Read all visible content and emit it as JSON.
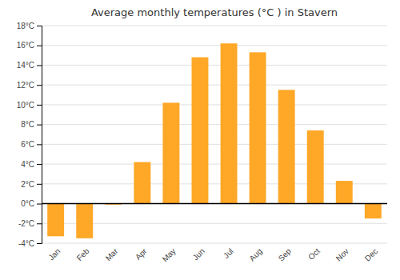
{
  "chart_data": {
    "type": "bar",
    "title": "Average monthly temperatures (°C ) in Stavern",
    "categories": [
      "Jan",
      "Feb",
      "Mar",
      "Apr",
      "May",
      "Jun",
      "Jul",
      "Aug",
      "Sep",
      "Oct",
      "Nov",
      "Dec"
    ],
    "values": [
      -3.3,
      -3.5,
      -0.1,
      4.2,
      10.2,
      14.8,
      16.2,
      15.3,
      11.5,
      7.4,
      2.3,
      -1.5
    ],
    "color": "#FFA726",
    "ylim": [
      -4,
      18
    ],
    "yticks": [
      {
        "value": -4,
        "label": "-4°C"
      },
      {
        "value": -2,
        "label": "-2°C"
      },
      {
        "value": 0,
        "label": "0°C"
      },
      {
        "value": 2,
        "label": "2°C"
      },
      {
        "value": 4,
        "label": "4°C"
      },
      {
        "value": 6,
        "label": "6°C"
      },
      {
        "value": 8,
        "label": "8°C"
      },
      {
        "value": 10,
        "label": "10°C"
      },
      {
        "value": 12,
        "label": "12°C"
      },
      {
        "value": 14,
        "label": "14°C"
      },
      {
        "value": 16,
        "label": "16°C"
      },
      {
        "value": 18,
        "label": "18°C"
      }
    ],
    "grid": true
  }
}
